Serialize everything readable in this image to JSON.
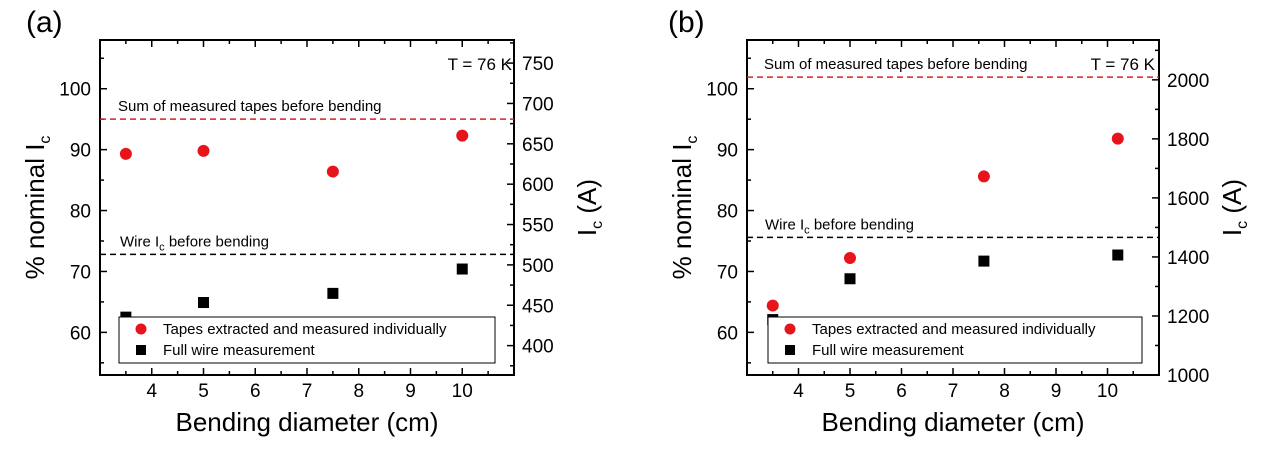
{
  "chart_data": [
    {
      "type": "scatter",
      "panel_label": "(a)",
      "xlabel": "Bending diameter (cm)",
      "ylabel_main": "% nominal I",
      "ylabel_sub": "c",
      "y2label_main": "I",
      "y2label_sub": "c",
      "y2label_rest": " (A)",
      "xlim": [
        3,
        11
      ],
      "ylim": [
        53,
        108
      ],
      "y2lim": [
        363.6,
        778.6
      ],
      "xticks": [
        4,
        5,
        6,
        7,
        8,
        9,
        10
      ],
      "yticks": [
        60,
        70,
        80,
        90,
        100
      ],
      "y2ticks": [
        400,
        450,
        500,
        550,
        600,
        650,
        700,
        750
      ],
      "annotation_temp": "T = 76 K",
      "reference_lines": [
        {
          "name": "Sum of measured tapes before bending",
          "label_main": "Sum of measured tapes before bending",
          "label_sub": "",
          "label_rest": "",
          "y": 95,
          "color": "#e02020"
        },
        {
          "name": "Wire Ic before bending",
          "label_main": "Wire I",
          "label_sub": "c",
          "label_rest": " before bending",
          "y": 72.8,
          "color": "#000000"
        }
      ],
      "series": [
        {
          "name": "Tapes extracted and measured individually",
          "marker": "circle",
          "color": "#e8141c",
          "x": [
            3.5,
            5,
            7.5,
            10
          ],
          "y": [
            89.3,
            89.8,
            86.4,
            92.3
          ]
        },
        {
          "name": "Full wire measurement",
          "marker": "square",
          "color": "#000000",
          "x": [
            3.5,
            5,
            7.5,
            10
          ],
          "y": [
            62.5,
            64.9,
            66.4,
            70.4
          ]
        }
      ],
      "legend_position": "lower-right"
    },
    {
      "type": "scatter",
      "panel_label": "(b)",
      "xlabel": "Bending diameter (cm)",
      "ylabel_main": "% nominal I",
      "ylabel_sub": "c",
      "y2label_main": "I",
      "y2label_sub": "c",
      "y2label_rest": " (A)",
      "xlim": [
        3,
        11
      ],
      "ylim": [
        53,
        108
      ],
      "y2lim": [
        1000,
        2135
      ],
      "xticks": [
        4,
        5,
        6,
        7,
        8,
        9,
        10
      ],
      "yticks": [
        60,
        70,
        80,
        90,
        100
      ],
      "y2ticks": [
        1000,
        1200,
        1400,
        1600,
        1800,
        2000
      ],
      "annotation_temp": "T = 76 K",
      "reference_lines": [
        {
          "name": "Sum of measured tapes before bending",
          "label_main": "Sum of measured tapes before bending",
          "label_sub": "",
          "label_rest": "",
          "y": 101.9,
          "color": "#e02020"
        },
        {
          "name": "Wire Ic before bending",
          "label_main": "Wire I",
          "label_sub": "c",
          "label_rest": " before bending",
          "y": 75.6,
          "color": "#000000"
        }
      ],
      "series": [
        {
          "name": "Tapes extracted and measured individually",
          "marker": "circle",
          "color": "#e8141c",
          "x": [
            3.5,
            5,
            7.6,
            10.2
          ],
          "y": [
            64.4,
            72.2,
            85.6,
            91.8
          ]
        },
        {
          "name": "Full wire measurement",
          "marker": "square",
          "color": "#000000",
          "x": [
            3.5,
            5,
            7.6,
            10.2
          ],
          "y": [
            62.1,
            68.8,
            71.7,
            72.7
          ]
        }
      ],
      "legend_position": "lower-right"
    }
  ]
}
